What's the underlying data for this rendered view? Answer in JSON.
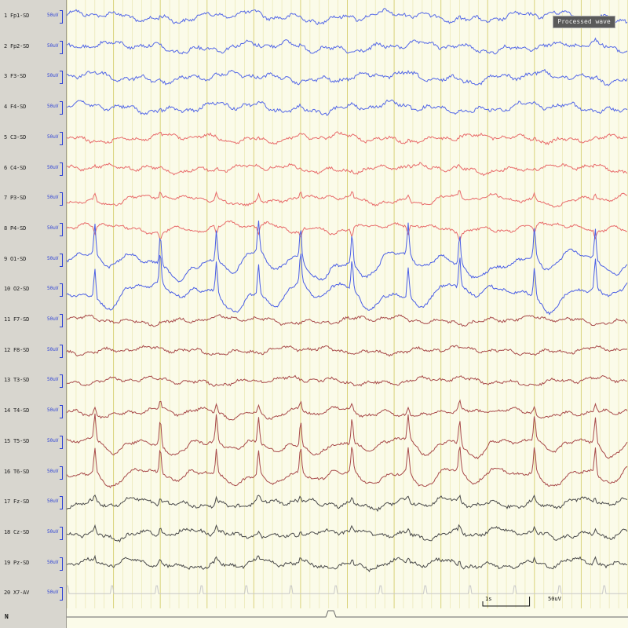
{
  "viewer": {
    "status_badge": "Processed wave",
    "bottom_marker": "N"
  },
  "channels": [
    {
      "num": "1",
      "name": "Fp1-SD",
      "units": "50uV",
      "color": "#5468e8",
      "group": "frontal"
    },
    {
      "num": "2",
      "name": "Fp2-SD",
      "units": "50uV",
      "color": "#5468e8",
      "group": "frontal"
    },
    {
      "num": "3",
      "name": "F3-SD",
      "units": "50uV",
      "color": "#5468e8",
      "group": "frontal"
    },
    {
      "num": "4",
      "name": "F4-SD",
      "units": "50uV",
      "color": "#5468e8",
      "group": "frontal"
    },
    {
      "num": "5",
      "name": "C3-SD",
      "units": "50uV",
      "color": "#e86a6a",
      "group": "central"
    },
    {
      "num": "6",
      "name": "C4-SD",
      "units": "50uV",
      "color": "#e86a6a",
      "group": "central"
    },
    {
      "num": "7",
      "name": "P3-SD",
      "units": "50uV",
      "color": "#e86a6a",
      "group": "parietal"
    },
    {
      "num": "8",
      "name": "P4-SD",
      "units": "50uV",
      "color": "#e86a6a",
      "group": "parietal"
    },
    {
      "num": "9",
      "name": "O1-SD",
      "units": "50uV",
      "color": "#4a5ee6",
      "group": "occipital"
    },
    {
      "num": "10",
      "name": "O2-SD",
      "units": "50uV",
      "color": "#4a5ee6",
      "group": "occipital"
    },
    {
      "num": "11",
      "name": "F7-SD",
      "units": "50uV",
      "color": "#a84a4a",
      "group": "temporal"
    },
    {
      "num": "12",
      "name": "F8-SD",
      "units": "50uV",
      "color": "#a84a4a",
      "group": "temporal"
    },
    {
      "num": "13",
      "name": "T3-SD",
      "units": "50uV",
      "color": "#a84a4a",
      "group": "temporal"
    },
    {
      "num": "14",
      "name": "T4-SD",
      "units": "50uV",
      "color": "#a84a4a",
      "group": "temporal"
    },
    {
      "num": "15",
      "name": "T5-SD",
      "units": "50uV",
      "color": "#a84a4a",
      "group": "temporal"
    },
    {
      "num": "16",
      "name": "T6-SD",
      "units": "50uV",
      "color": "#a84a4a",
      "group": "temporal"
    },
    {
      "num": "17",
      "name": "Fz-SD",
      "units": "50uV",
      "color": "#4a4a4a",
      "group": "midline"
    },
    {
      "num": "18",
      "name": "Cz-SD",
      "units": "50uV",
      "color": "#4a4a4a",
      "group": "midline"
    },
    {
      "num": "19",
      "name": "Pz-SD",
      "units": "50uV",
      "color": "#4a4a4a",
      "group": "midline"
    },
    {
      "num": "20",
      "name": "X7-AV",
      "units": "50uV",
      "color": "#c8c8c8",
      "group": "ecg"
    }
  ],
  "chart_data": {
    "type": "line",
    "duration_s": 12,
    "grid": true,
    "calibration": {
      "time_label": "1s",
      "amplitude_label": "50uV"
    },
    "discharge_times_s": [
      0.6,
      2.0,
      3.2,
      4.1,
      5.0,
      6.1,
      7.3,
      8.4,
      10.0,
      11.3
    ]
  }
}
